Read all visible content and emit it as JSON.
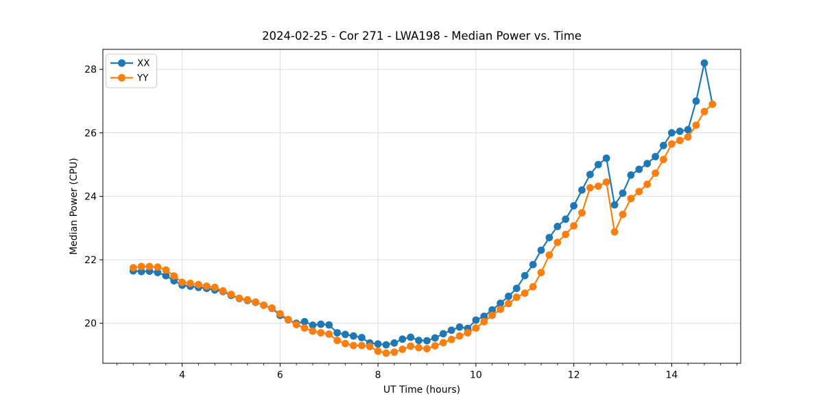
{
  "figure": {
    "background": "#ffffff"
  },
  "chart_data": {
    "type": "line",
    "title": "2024-02-25 - Cor 271 - LWA198 - Median Power vs. Time",
    "xlabel": "UT Time (hours)",
    "ylabel": "Median Power (CPU)",
    "xlim": [
      2.38,
      15.41
    ],
    "ylim": [
      18.74,
      28.63
    ],
    "xticks": [
      4,
      6,
      8,
      10,
      12,
      14
    ],
    "yticks": [
      20,
      22,
      24,
      26,
      28
    ],
    "x_minor_step": 0.3333,
    "grid": true,
    "grid_color": "#dcdcdc",
    "legend_position": "upper-left",
    "x": [
      3.0,
      3.167,
      3.333,
      3.5,
      3.667,
      3.833,
      4.0,
      4.167,
      4.333,
      4.5,
      4.667,
      4.833,
      5.0,
      5.167,
      5.333,
      5.5,
      5.667,
      5.833,
      6.0,
      6.167,
      6.333,
      6.5,
      6.667,
      6.833,
      7.0,
      7.167,
      7.333,
      7.5,
      7.667,
      7.833,
      8.0,
      8.167,
      8.333,
      8.5,
      8.667,
      8.833,
      9.0,
      9.167,
      9.333,
      9.5,
      9.667,
      9.833,
      10.0,
      10.167,
      10.333,
      10.5,
      10.667,
      10.833,
      11.0,
      11.167,
      11.333,
      11.5,
      11.667,
      11.833,
      12.0,
      12.167,
      12.333,
      12.5,
      12.667,
      12.833,
      13.0,
      13.167,
      13.333,
      13.5,
      13.667,
      13.833,
      14.0,
      14.167,
      14.333,
      14.5,
      14.667,
      14.833
    ],
    "series": [
      {
        "name": "XX",
        "color": "#1f77b4",
        "values": [
          21.65,
          21.63,
          21.64,
          21.6,
          21.5,
          21.34,
          21.2,
          21.17,
          21.13,
          21.1,
          21.05,
          21.0,
          20.88,
          20.78,
          20.72,
          20.66,
          20.57,
          20.47,
          20.25,
          20.11,
          20.0,
          20.05,
          19.94,
          19.97,
          19.95,
          19.7,
          19.65,
          19.6,
          19.55,
          19.38,
          19.35,
          19.32,
          19.38,
          19.5,
          19.56,
          19.46,
          19.45,
          19.54,
          19.67,
          19.78,
          19.88,
          19.84,
          20.1,
          20.22,
          20.42,
          20.63,
          20.85,
          21.1,
          21.5,
          21.85,
          22.3,
          22.7,
          23.05,
          23.28,
          23.7,
          24.2,
          24.69,
          25.0,
          25.2,
          23.73,
          24.1,
          24.67,
          24.85,
          25.03,
          25.25,
          25.6,
          26.0,
          26.05,
          26.1,
          27.0,
          28.2,
          26.9
        ]
      },
      {
        "name": "YY",
        "color": "#ff7f0e",
        "values": [
          21.75,
          21.79,
          21.79,
          21.77,
          21.68,
          21.49,
          21.29,
          21.26,
          21.22,
          21.17,
          21.13,
          21.02,
          20.91,
          20.79,
          20.74,
          20.67,
          20.57,
          20.48,
          20.3,
          20.12,
          19.96,
          19.85,
          19.75,
          19.7,
          19.66,
          19.46,
          19.36,
          19.3,
          19.3,
          19.27,
          19.12,
          19.06,
          19.09,
          19.18,
          19.28,
          19.23,
          19.2,
          19.29,
          19.39,
          19.49,
          19.6,
          19.7,
          19.85,
          20.05,
          20.25,
          20.44,
          20.62,
          20.82,
          20.95,
          21.15,
          21.6,
          22.15,
          22.55,
          22.8,
          23.07,
          23.48,
          24.27,
          24.32,
          24.45,
          22.88,
          23.43,
          23.93,
          24.15,
          24.38,
          24.73,
          25.16,
          25.65,
          25.76,
          25.87,
          26.24,
          26.67,
          26.9
        ]
      }
    ]
  }
}
